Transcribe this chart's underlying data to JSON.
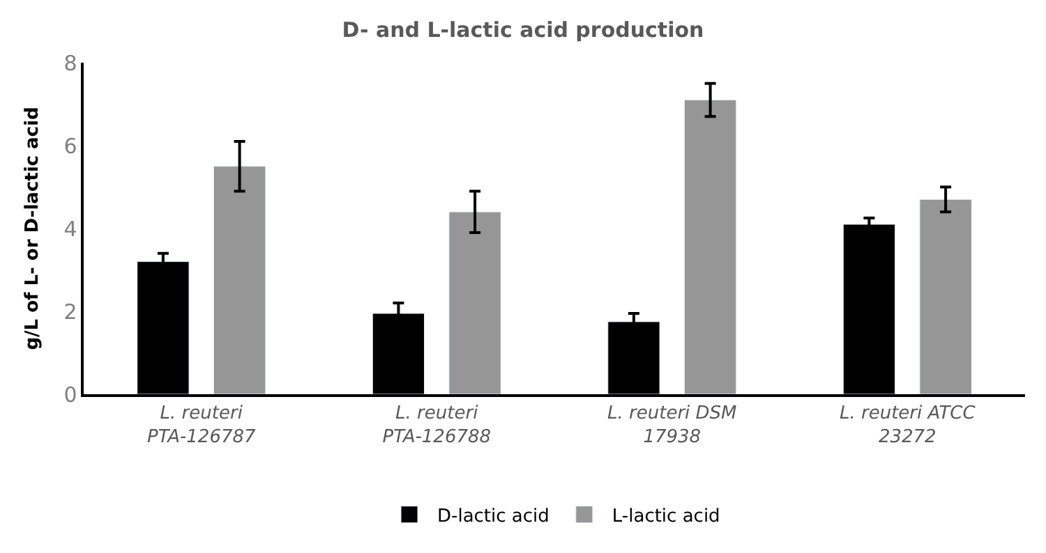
{
  "chart_data": {
    "type": "bar",
    "title": "D- and L-lactic acid production",
    "ylabel": "g/L of L- or D-lactic acid",
    "categories": [
      "L. reuteri PTA-126787",
      "L. reuteri PTA-126788",
      "L. reuteri DSM 17938",
      "L. reuteri ATCC 23272"
    ],
    "series": [
      {
        "name": "D-lactic acid",
        "color": "#000000",
        "values": [
          3.2,
          1.95,
          1.75,
          4.1
        ],
        "errors": [
          0.2,
          0.25,
          0.2,
          0.15
        ]
      },
      {
        "name": "L-lactic acid",
        "color": "#969696",
        "values": [
          5.5,
          4.4,
          7.1,
          4.7
        ],
        "errors": [
          0.6,
          0.5,
          0.4,
          0.3
        ]
      }
    ],
    "ylim": [
      0,
      8
    ],
    "yticks": [
      0,
      2,
      4,
      6,
      8
    ],
    "grid": false,
    "legend": "bottom"
  }
}
